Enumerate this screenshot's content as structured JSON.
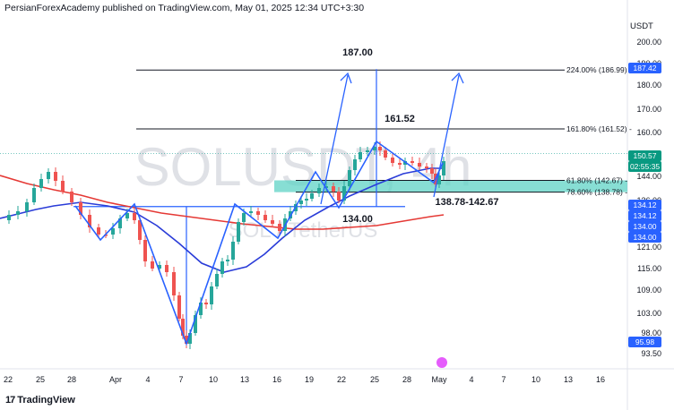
{
  "header": {
    "publisher_line": "PersianForexAcademy published on TradingView.com, May 01, 2025 12:34 UTC+3:30"
  },
  "currency": "USDT",
  "watermark": {
    "symbol": "SOLUSDT, 4h",
    "description": "SOL / TetherUS"
  },
  "footer": {
    "brand": "TradingView"
  },
  "chart_data": {
    "type": "candlestick",
    "symbol": "SOLUSDT",
    "timeframe": "4h",
    "y_ticks": [
      "200.00",
      "190.00",
      "180.00",
      "170.00",
      "160.00",
      "150.00",
      "144.00",
      "136.00",
      "128.00",
      "121.00",
      "115.00",
      "109.00",
      "103.00",
      "98.00",
      "93.50"
    ],
    "x_ticks": [
      "22",
      "25",
      "28",
      "Apr",
      "4",
      "7",
      "10",
      "13",
      "16",
      "19",
      "22",
      "25",
      "28",
      "May",
      "4",
      "7",
      "10",
      "13",
      "16"
    ],
    "fib_levels": [
      {
        "label": "224.00% (186.99)",
        "price": 186.99
      },
      {
        "label": "161.80% (161.52)",
        "price": 161.52
      },
      {
        "label": "61.80% (142.67)",
        "price": 142.67
      },
      {
        "label": "78.60% (138.78)",
        "price": 138.78
      }
    ],
    "annotations": [
      {
        "text": "187.00",
        "price": 187.0
      },
      {
        "text": "161.52",
        "price": 161.52
      },
      {
        "text": "134.00",
        "price": 134.0
      },
      {
        "text": "138.78-142.67",
        "zone": [
          138.78,
          142.67
        ]
      }
    ],
    "price_tags": [
      {
        "text": "187.42",
        "color": "#2962ff"
      },
      {
        "text": "150.57",
        "color": "#089981"
      },
      {
        "text": "02:55:35",
        "color": "#089981"
      },
      {
        "text": "134.12",
        "color": "#2962ff"
      },
      {
        "text": "134.12",
        "color": "#2962ff"
      },
      {
        "text": "134.00",
        "color": "#2962ff"
      },
      {
        "text": "134.00",
        "color": "#2962ff"
      },
      {
        "text": "95.98",
        "color": "#2962ff"
      }
    ],
    "moving_averages": [
      {
        "color": "#2a3cd8"
      },
      {
        "color": "#e53935"
      }
    ],
    "colors": {
      "up": "#26a69a",
      "down": "#ef5350",
      "drawing": "#2962ff",
      "zone": "#5fd3c6"
    }
  }
}
